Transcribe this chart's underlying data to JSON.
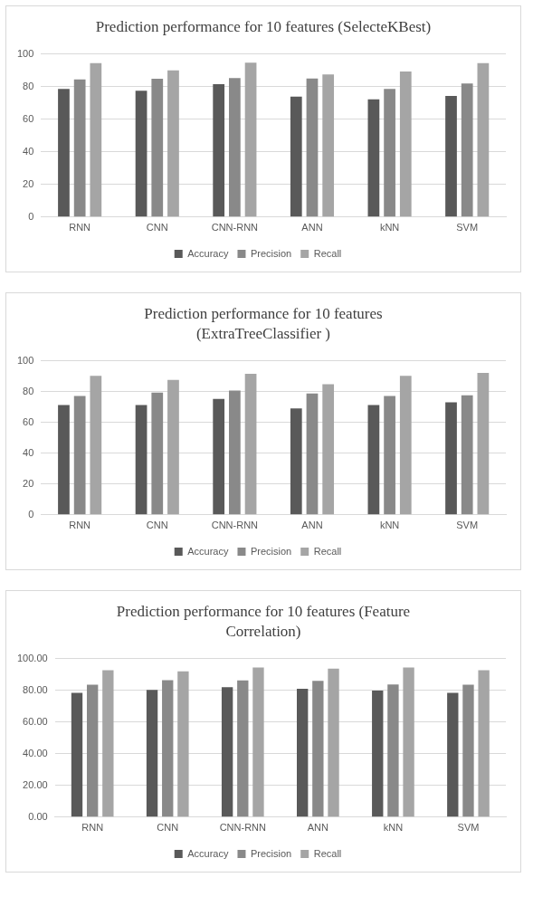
{
  "chart_data": [
    {
      "type": "bar",
      "title": "Prediction performance for 10 features (SelecteKBest)",
      "categories": [
        "RNN",
        "CNN",
        "CNN-RNN",
        "ANN",
        "kNN",
        "SVM"
      ],
      "series": [
        {
          "name": "Accuracy",
          "color": "#595959",
          "values": [
            78.6,
            77.4,
            81.5,
            73.9,
            72.2,
            74.3
          ]
        },
        {
          "name": "Precision",
          "color": "#898989",
          "values": [
            84.4,
            84.8,
            85.2,
            85,
            78.6,
            81.9
          ]
        },
        {
          "name": "Recall",
          "color": "#a5a5a5",
          "values": [
            94.4,
            89.9,
            94.6,
            87.5,
            89.3,
            94.4
          ]
        }
      ],
      "ylim": [
        0,
        100
      ],
      "yticks": [
        0,
        20,
        40,
        60,
        80,
        100
      ],
      "grid": "y",
      "legend": "bottom"
    },
    {
      "type": "bar",
      "title": "Prediction performance for 10 features (ExtraTreeClassifier )",
      "categories": [
        "RNN",
        "CNN",
        "CNN-RNN",
        "ANN",
        "kNN",
        "SVM"
      ],
      "series": [
        {
          "name": "Accuracy",
          "color": "#595959",
          "values": [
            71.3,
            71.3,
            75.2,
            69.1,
            71.3,
            73
          ]
        },
        {
          "name": "Precision",
          "color": "#898989",
          "values": [
            77.2,
            79.3,
            80.7,
            78.7,
            77.2,
            77.6
          ]
        },
        {
          "name": "Recall",
          "color": "#a5a5a5",
          "values": [
            90.2,
            87.6,
            91.5,
            84.8,
            90.2,
            92.2
          ]
        }
      ],
      "ylim": [
        0,
        100
      ],
      "yticks": [
        0,
        20,
        40,
        60,
        80,
        100
      ],
      "grid": "y",
      "legend": "bottom"
    },
    {
      "type": "bar",
      "title": "Prediction performance for 10 features (Feature Correlation)",
      "categories": [
        "RNN",
        "CNN",
        "CNN-RNN",
        "ANN",
        "kNN",
        "SVM"
      ],
      "series": [
        {
          "name": "Accuracy",
          "color": "#595959",
          "values": [
            78.3,
            80.2,
            82,
            81,
            79.8,
            78.3
          ]
        },
        {
          "name": "Precision",
          "color": "#898989",
          "values": [
            83.5,
            86.4,
            86.2,
            85.9,
            83.7,
            83.5
          ]
        },
        {
          "name": "Recall",
          "color": "#a5a5a5",
          "values": [
            92.6,
            91.9,
            94.3,
            93.6,
            94.3,
            92.6
          ]
        }
      ],
      "ylim": [
        0,
        100
      ],
      "yticks": [
        {
          "value": 0,
          "label": "0.00"
        },
        {
          "value": 20,
          "label": "20.00"
        },
        {
          "value": 40,
          "label": "40.00"
        },
        {
          "value": 60,
          "label": "60.00"
        },
        {
          "value": 80,
          "label": "80.00"
        },
        {
          "value": 100,
          "label": "100.00"
        }
      ],
      "grid": "y",
      "legend": "bottom"
    }
  ]
}
